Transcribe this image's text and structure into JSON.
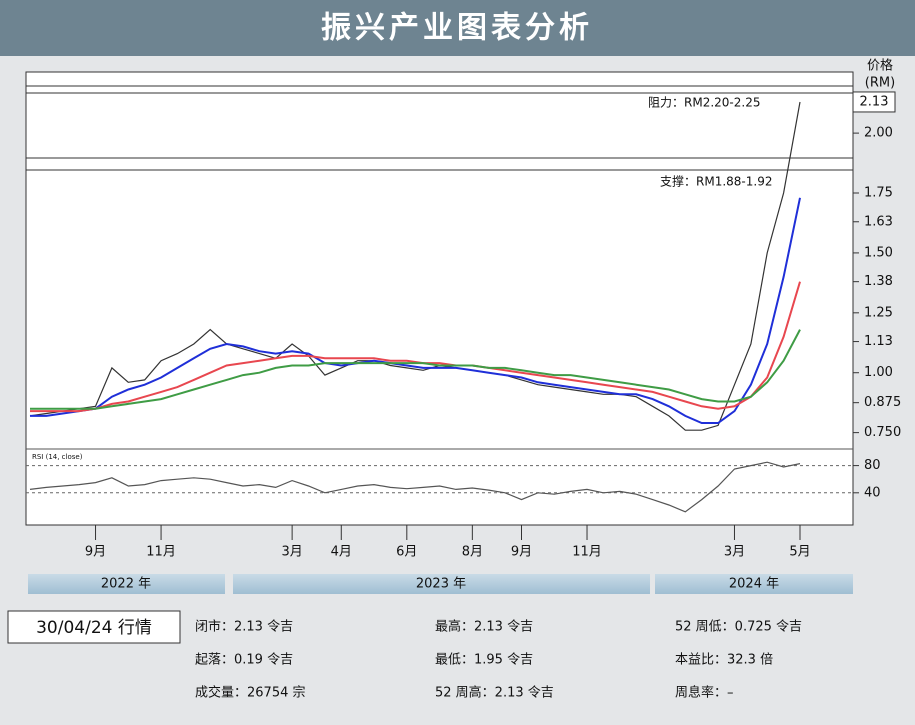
{
  "header": {
    "title": "振兴产业图表分析"
  },
  "chart_data": {
    "type": "line",
    "price_axis_label": [
      "价格",
      "(RM)"
    ],
    "annotations": [
      "阻力：RM2.20-2.25",
      "支撑：RM1.88-1.92"
    ],
    "rsi_label": "RSI (14, close)",
    "price_marker": {
      "value": 2.13,
      "label": "2.13"
    },
    "categories": [
      null,
      null,
      null,
      null,
      "9月",
      null,
      null,
      null,
      "11月",
      null,
      null,
      null,
      null,
      null,
      null,
      null,
      "3月",
      null,
      null,
      "4月",
      null,
      null,
      null,
      "6月",
      null,
      null,
      null,
      "8月",
      null,
      null,
      "9月",
      null,
      null,
      null,
      "11月",
      null,
      null,
      null,
      null,
      null,
      null,
      null,
      null,
      "3月",
      null,
      null,
      null,
      "5月"
    ],
    "ylim": [
      0.69,
      2.23
    ],
    "yticks": [
      {
        "value": 0.75,
        "label": "0.750"
      },
      0.875,
      {
        "value": 1.0,
        "label": "1.00"
      },
      1.13,
      1.25,
      1.38,
      {
        "value": 1.5,
        "label": "1.50"
      },
      1.63,
      1.75,
      {
        "value": 2.0,
        "label": "2.00"
      }
    ],
    "y2lim": [
      0,
      100
    ],
    "y2ticks": [
      40,
      80
    ],
    "grid": false,
    "series": [
      {
        "color": "#333333",
        "values": [
          0.82,
          0.83,
          0.84,
          0.85,
          0.86,
          1.02,
          0.96,
          0.97,
          1.05,
          1.08,
          1.12,
          1.18,
          1.12,
          1.1,
          1.08,
          1.06,
          1.12,
          1.07,
          0.99,
          1.02,
          1.05,
          1.05,
          1.03,
          1.02,
          1.01,
          1.03,
          1.02,
          1.01,
          1.0,
          0.99,
          0.97,
          0.95,
          0.94,
          0.93,
          0.92,
          0.91,
          0.91,
          0.9,
          0.86,
          0.82,
          0.76,
          0.76,
          0.78,
          0.95,
          1.12,
          1.5,
          1.75,
          2.13
        ]
      },
      {
        "color": "#1f2fd8",
        "values": [
          0.82,
          0.82,
          0.83,
          0.84,
          0.85,
          0.9,
          0.93,
          0.95,
          0.98,
          1.02,
          1.06,
          1.1,
          1.12,
          1.11,
          1.09,
          1.08,
          1.09,
          1.08,
          1.04,
          1.03,
          1.04,
          1.05,
          1.04,
          1.03,
          1.02,
          1.02,
          1.02,
          1.01,
          1.0,
          0.99,
          0.98,
          0.96,
          0.95,
          0.94,
          0.93,
          0.92,
          0.91,
          0.91,
          0.89,
          0.86,
          0.82,
          0.79,
          0.79,
          0.84,
          0.95,
          1.12,
          1.4,
          1.73
        ]
      },
      {
        "color": "#e8474f",
        "values": [
          0.84,
          0.84,
          0.84,
          0.84,
          0.85,
          0.87,
          0.88,
          0.9,
          0.92,
          0.94,
          0.97,
          1.0,
          1.03,
          1.04,
          1.05,
          1.06,
          1.07,
          1.07,
          1.06,
          1.06,
          1.06,
          1.06,
          1.05,
          1.05,
          1.04,
          1.04,
          1.03,
          1.03,
          1.02,
          1.01,
          1.0,
          0.99,
          0.98,
          0.97,
          0.96,
          0.95,
          0.94,
          0.93,
          0.92,
          0.9,
          0.88,
          0.86,
          0.85,
          0.86,
          0.9,
          0.98,
          1.15,
          1.38
        ]
      },
      {
        "color": "#3f9c45",
        "values": [
          0.85,
          0.85,
          0.85,
          0.85,
          0.85,
          0.86,
          0.87,
          0.88,
          0.89,
          0.91,
          0.93,
          0.95,
          0.97,
          0.99,
          1.0,
          1.02,
          1.03,
          1.03,
          1.04,
          1.04,
          1.04,
          1.04,
          1.04,
          1.04,
          1.04,
          1.03,
          1.03,
          1.03,
          1.02,
          1.02,
          1.01,
          1.0,
          0.99,
          0.99,
          0.98,
          0.97,
          0.96,
          0.95,
          0.94,
          0.93,
          0.91,
          0.89,
          0.88,
          0.88,
          0.9,
          0.96,
          1.05,
          1.18
        ]
      },
      {
        "color": "#555555",
        "axis": "y2",
        "values": [
          45,
          48,
          50,
          52,
          55,
          62,
          50,
          52,
          58,
          60,
          62,
          60,
          55,
          50,
          52,
          48,
          58,
          50,
          40,
          45,
          50,
          52,
          48,
          46,
          48,
          50,
          45,
          47,
          44,
          40,
          30,
          40,
          38,
          42,
          45,
          40,
          42,
          38,
          30,
          22,
          12,
          30,
          50,
          75,
          80,
          85,
          78,
          83
        ]
      }
    ],
    "years": [
      "2022 年",
      "2023 年",
      "2024 年"
    ]
  },
  "info": {
    "date": "30/04/24 行情",
    "items": [
      "闭市：2.13 令吉",
      "最高：2.13 令吉",
      "52 周低：0.725 令吉",
      "起落：0.19 令吉",
      "最低：1.95 令吉",
      "本益比：32.3 倍",
      "成交量：26754 宗",
      "52 周高：2.13 令吉",
      "周息率：–"
    ]
  }
}
